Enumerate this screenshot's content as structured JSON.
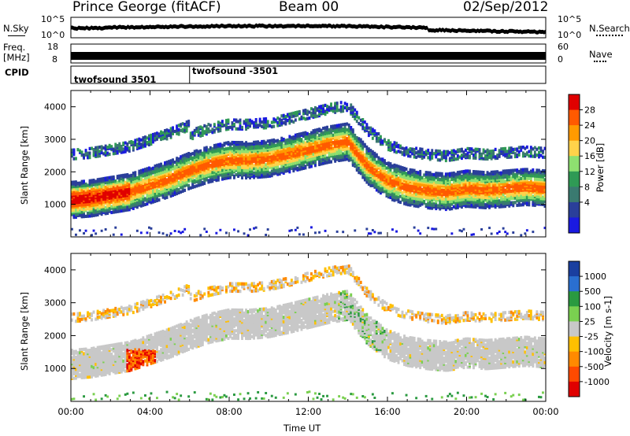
{
  "header": {
    "station": "Prince George (fitACF)",
    "beam": "Beam 00",
    "date": "02/Sep/2012"
  },
  "strip": {
    "nsky_label": "N.Sky",
    "nsearch_label": "N.Search",
    "nsky_ticks": [
      "10^5",
      "10^0"
    ],
    "nsearch_ticks": [
      "10^5",
      "10^0"
    ],
    "freq_label_1": "Freq.",
    "freq_label_2": "[MHz]",
    "freq_ticks": [
      "18",
      "8"
    ],
    "nave_label": "Nave",
    "nave_ticks": [
      "60",
      "0"
    ],
    "cpid_label": "CPID",
    "cpid_entries": [
      {
        "label": "twofsound 3501",
        "start_hour": 0.0
      },
      {
        "label": "twofsound -3501",
        "start_hour": 6.0
      }
    ]
  },
  "chart_data": [
    {
      "type": "heatmap",
      "panel": "power",
      "ylabel": "Slant Range [km]",
      "xlabel": "",
      "xlim": [
        0,
        24
      ],
      "ylim": [
        0,
        4500
      ],
      "yticks": [
        "1000",
        "2000",
        "3000",
        "4000"
      ],
      "colorbar": {
        "label": "Power [dB]",
        "ticks": [
          "28",
          "24",
          "20",
          "16",
          "12",
          "8",
          "4"
        ],
        "colors": [
          "#e00000",
          "#ff5a00",
          "#ff9a00",
          "#ffd24a",
          "#8ee070",
          "#2f9a55",
          "#3a7a70",
          "#2a3f9a",
          "#1a1ae0"
        ]
      },
      "echo_bands": [
        {
          "hours": [
            0,
            1,
            2,
            3,
            4,
            5,
            6,
            7,
            8,
            9,
            10,
            11,
            12,
            13,
            14,
            15,
            16,
            17,
            18,
            19,
            20,
            21,
            22,
            23,
            24
          ],
          "range_km": [
            1150,
            1200,
            1300,
            1400,
            1600,
            1800,
            2050,
            2250,
            2380,
            2370,
            2420,
            2550,
            2700,
            2850,
            2950,
            2200,
            1750,
            1550,
            1450,
            1400,
            1500,
            1450,
            1500,
            1550,
            1500
          ]
        }
      ]
    },
    {
      "type": "heatmap",
      "panel": "velocity",
      "ylabel": "Slant Range [km]",
      "xlabel": "Time UT",
      "xlim": [
        0,
        24
      ],
      "ylim": [
        0,
        4500
      ],
      "yticks": [
        "1000",
        "2000",
        "3000",
        "4000"
      ],
      "xticks": [
        "00:00",
        "04:00",
        "08:00",
        "12:00",
        "16:00",
        "20:00",
        "00:00"
      ],
      "colorbar": {
        "label": "Velocity [m s-1]",
        "ticks": [
          "1000",
          "500",
          "100",
          "25",
          "-25",
          "-100",
          "-500",
          "-1000"
        ],
        "colors": [
          "#1a3fa0",
          "#2a6fd0",
          "#2a9a40",
          "#7ad050",
          "#c8c8c8",
          "#ffc000",
          "#ff8a00",
          "#ff4a00",
          "#e00000"
        ]
      }
    }
  ]
}
